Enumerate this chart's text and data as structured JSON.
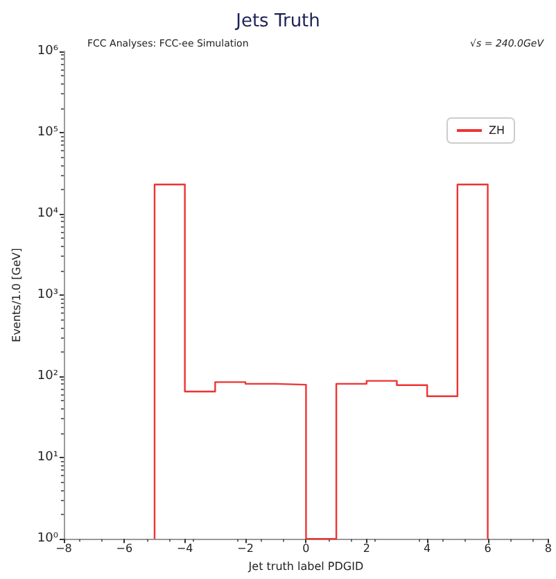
{
  "chart_data": {
    "type": "histogram",
    "title": "Jets Truth",
    "subtitle": "FCC Analyses: FCC-ee Simulation",
    "annotations": [
      "√s = 240.0GeV"
    ],
    "xlabel": "Jet truth label PDGID",
    "ylabel": "Events/1.0 [GeV]",
    "bins": [
      -5,
      -4,
      -3,
      -2,
      -1,
      0,
      1,
      2,
      3,
      4,
      5,
      6
    ],
    "series": [
      {
        "name": "ZH",
        "color": "#ee3333",
        "values": [
          23000,
          65,
          85,
          81,
          79,
          null,
          81,
          88,
          78,
          57,
          23000
        ]
      }
    ],
    "xlim": [
      -8,
      8
    ],
    "xticks": [
      {
        "value": -8,
        "label": "−8"
      },
      {
        "value": -6,
        "label": "−6"
      },
      {
        "value": -4,
        "label": "−4"
      },
      {
        "value": -2,
        "label": "−2"
      },
      0,
      2,
      4,
      6,
      8
    ],
    "ylim": [
      1,
      1000000
    ],
    "yticks": [
      {
        "value": 1,
        "label": "10⁰"
      },
      {
        "value": 10,
        "label": "10¹"
      },
      {
        "value": 100,
        "label": "10²"
      },
      {
        "value": 1000,
        "label": "10³"
      },
      {
        "value": 10000,
        "label": "10⁴"
      },
      {
        "value": 100000,
        "label": "10⁵"
      },
      {
        "value": 1000000,
        "label": "10⁶"
      }
    ],
    "log": "y",
    "legend": "top right",
    "grid": false
  }
}
